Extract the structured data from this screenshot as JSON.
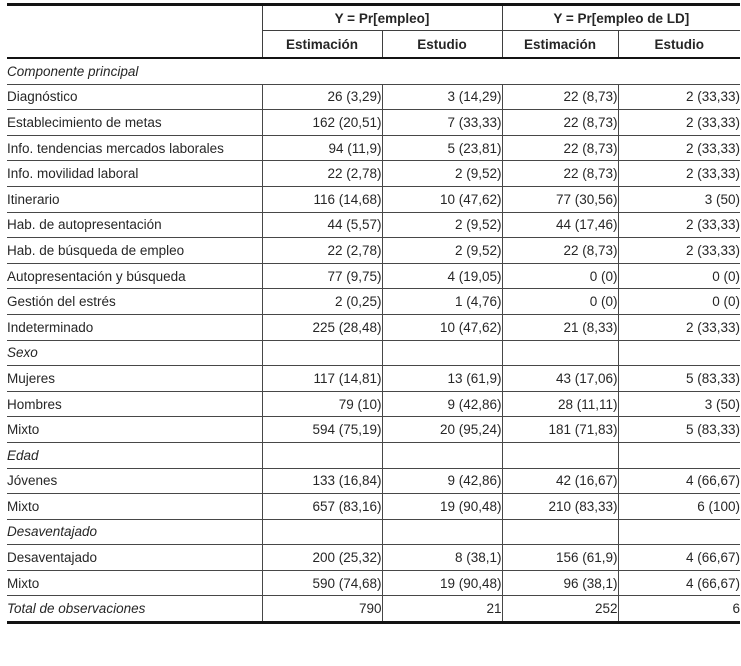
{
  "table": {
    "col_groups": [
      {
        "label": "Y = Pr[empleo]"
      },
      {
        "label": "Y = Pr[empleo de LD]"
      }
    ],
    "sub_headers": [
      "Estimación",
      "Estudio",
      "Estimación",
      "Estudio"
    ],
    "sections": [
      {
        "title": "Componente principal",
        "full_span": true,
        "rows": [
          {
            "label": "Diagnóstico",
            "values": [
              "26 (3,29)",
              "3 (14,29)",
              "22 (8,73)",
              "2 (33,33)"
            ]
          },
          {
            "label": "Establecimiento de metas",
            "values": [
              "162 (20,51)",
              "7 (33,33)",
              "22 (8,73)",
              "2 (33,33)"
            ]
          },
          {
            "label": "Info. tendencias mercados laborales",
            "values": [
              "94 (11,9)",
              "5 (23,81)",
              "22 (8,73)",
              "2 (33,33)"
            ]
          },
          {
            "label": "Info. movilidad laboral",
            "values": [
              "22 (2,78)",
              "2 (9,52)",
              "22 (8,73)",
              "2 (33,33)"
            ]
          },
          {
            "label": "Itinerario",
            "values": [
              "116 (14,68)",
              "10 (47,62)",
              "77 (30,56)",
              "3 (50)"
            ]
          },
          {
            "label": "Hab. de autopresentación",
            "values": [
              "44 (5,57)",
              "2 (9,52)",
              "44 (17,46)",
              "2 (33,33)"
            ]
          },
          {
            "label": "Hab. de búsqueda de empleo",
            "values": [
              "22 (2,78)",
              "2 (9,52)",
              "22 (8,73)",
              "2 (33,33)"
            ]
          },
          {
            "label": "Autopresentación y búsqueda",
            "values": [
              "77 (9,75)",
              "4 (19,05)",
              "0 (0)",
              "0 (0)"
            ]
          },
          {
            "label": "Gestión del estrés",
            "values": [
              "2 (0,25)",
              "1 (4,76)",
              "0 (0)",
              "0 (0)"
            ]
          },
          {
            "label": "Indeterminado",
            "values": [
              "225 (28,48)",
              "10 (47,62)",
              "21 (8,33)",
              "2 (33,33)"
            ]
          }
        ]
      },
      {
        "title": "Sexo",
        "full_span": false,
        "rows": [
          {
            "label": "Mujeres",
            "values": [
              "117 (14,81)",
              "13 (61,9)",
              "43 (17,06)",
              "5 (83,33)"
            ]
          },
          {
            "label": "Hombres",
            "values": [
              "79 (10)",
              "9 (42,86)",
              "28 (11,11)",
              "3 (50)"
            ]
          },
          {
            "label": "Mixto",
            "values": [
              "594 (75,19)",
              "20 (95,24)",
              "181 (71,83)",
              "5 (83,33)"
            ]
          }
        ]
      },
      {
        "title": "Edad",
        "full_span": false,
        "rows": [
          {
            "label": "Jóvenes",
            "values": [
              "133 (16,84)",
              "9 (42,86)",
              "42 (16,67)",
              "4 (66,67)"
            ]
          },
          {
            "label": "Mixto",
            "values": [
              "657 (83,16)",
              "19 (90,48)",
              "210 (83,33)",
              "6 (100)"
            ]
          }
        ]
      },
      {
        "title": "Desaventajado",
        "full_span": false,
        "rows": [
          {
            "label": "Desaventajado",
            "values": [
              "200 (25,32)",
              "8 (38,1)",
              "156 (61,9)",
              "4 (66,67)"
            ]
          },
          {
            "label": "Mixto",
            "values": [
              "590 (74,68)",
              "19 (90,48)",
              "96 (38,1)",
              "4 (66,67)"
            ]
          }
        ]
      }
    ],
    "total_row": {
      "label": "Total de observaciones",
      "values": [
        "790",
        "21",
        "252",
        "6"
      ]
    }
  }
}
